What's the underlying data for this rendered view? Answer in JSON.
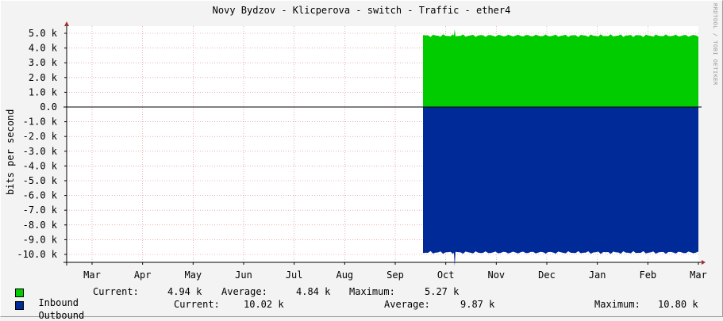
{
  "chart_data": {
    "type": "area",
    "title": "Novy Bydzov - Klicperova - switch - Traffic - ether4",
    "ylabel": "bits per second",
    "watermark": "RRDTOOL / TOBI OETIKER",
    "y_ticks": [
      "5.0 k",
      "4.0 k",
      "3.0 k",
      "2.0 k",
      "1.0 k",
      "0.0",
      "-1.0 k",
      "-2.0 k",
      "-3.0 k",
      "-4.0 k",
      "-5.0 k",
      "-6.0 k",
      "-7.0 k",
      "-8.0 k",
      "-9.0 k",
      "-10.0 k"
    ],
    "ylim": [
      -10.8,
      5.3
    ],
    "x_ticks": [
      "Mar",
      "Apr",
      "May",
      "Jun",
      "Jul",
      "Aug",
      "Sep",
      "Oct",
      "Nov",
      "Dec",
      "Jan",
      "Feb",
      "Mar"
    ],
    "data_start_month_index": 6.55,
    "grid": true,
    "series": [
      {
        "name": "Inbound",
        "color": "#00cc00",
        "level": 4.84,
        "spike_max": 5.27
      },
      {
        "name": "Outbound",
        "color": "#002a97",
        "level": -9.87,
        "spike_max": -10.8
      }
    ],
    "colors": {
      "background": "#f3f3f3",
      "plot": "#ffffff",
      "grid": "#e08080",
      "axis": "#000000"
    }
  },
  "legend": {
    "inbound": {
      "label": "Inbound",
      "current_label": "Current:",
      "current": "4.94 k",
      "average_label": "Average:",
      "average": "4.84 k",
      "maximum_label": "Maximum:",
      "maximum": "5.27 k"
    },
    "outbound": {
      "label": "Outbound",
      "current_label": "Current:",
      "current": "10.02 k",
      "average_label": "Average:",
      "average": "9.87 k",
      "maximum_label": "Maximum:",
      "maximum": "10.80 k"
    }
  }
}
